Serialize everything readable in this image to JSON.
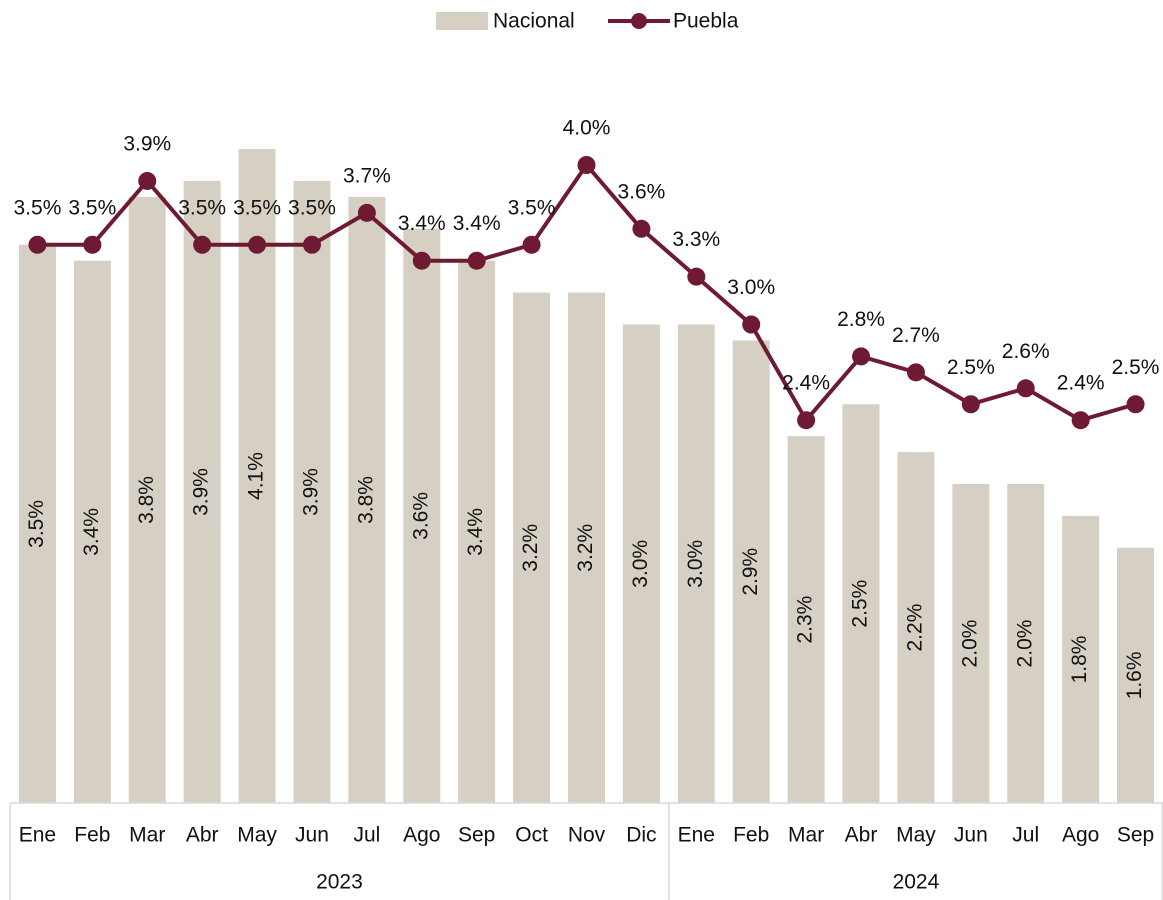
{
  "chart_data": {
    "type": "bar-line",
    "groups": [
      {
        "label": "2023",
        "categories": [
          "Ene",
          "Feb",
          "Mar",
          "Abr",
          "May",
          "Jun",
          "Jul",
          "Ago",
          "Sep",
          "Oct",
          "Nov",
          "Dic"
        ]
      },
      {
        "label": "2024",
        "categories": [
          "Ene",
          "Feb",
          "Mar",
          "Abr",
          "May",
          "Jun",
          "Jul",
          "Ago",
          "Sep"
        ]
      }
    ],
    "ylim": [
      0,
      5
    ],
    "series": [
      {
        "name": "Nacional",
        "type": "bar",
        "color": "#d6d0c4",
        "values": [
          3.5,
          3.4,
          3.8,
          3.9,
          4.1,
          3.9,
          3.8,
          3.6,
          3.4,
          3.2,
          3.2,
          3.0,
          3.0,
          2.9,
          2.3,
          2.5,
          2.2,
          2.0,
          2.0,
          1.8,
          1.6
        ],
        "value_labels": [
          "3.5%",
          "3.4%",
          "3.8%",
          "3.9%",
          "4.1%",
          "3.9%",
          "3.8%",
          "3.6%",
          "3.4%",
          "3.2%",
          "3.2%",
          "3.0%",
          "3.0%",
          "2.9%",
          "2.3%",
          "2.5%",
          "2.2%",
          "2.0%",
          "2.0%",
          "1.8%",
          "1.6%"
        ]
      },
      {
        "name": "Puebla",
        "type": "line",
        "color": "#6e1a32",
        "values": [
          3.5,
          3.5,
          3.9,
          3.5,
          3.5,
          3.5,
          3.7,
          3.4,
          3.4,
          3.5,
          4.0,
          3.6,
          3.3,
          3.0,
          2.4,
          2.8,
          2.7,
          2.5,
          2.6,
          2.4,
          2.5
        ],
        "value_labels": [
          "3.5%",
          "3.5%",
          "3.9%",
          "3.5%",
          "3.5%",
          "3.5%",
          "3.7%",
          "3.4%",
          "3.4%",
          "3.5%",
          "4.0%",
          "3.6%",
          "3.3%",
          "3.0%",
          "2.4%",
          "2.8%",
          "2.7%",
          "2.5%",
          "2.6%",
          "2.4%",
          "2.5%"
        ]
      }
    ]
  }
}
